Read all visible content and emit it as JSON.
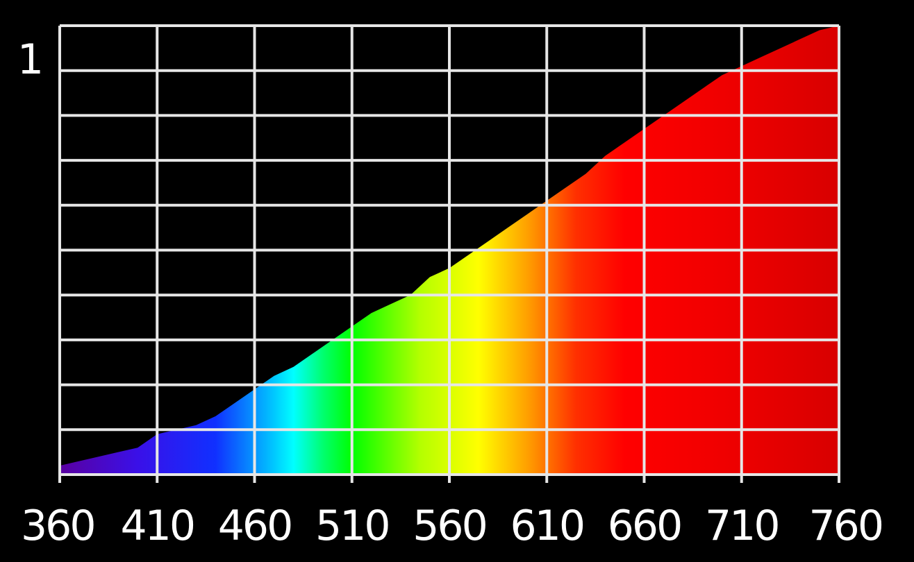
{
  "chart_data": {
    "type": "area",
    "title": "",
    "xlabel": "",
    "ylabel": "",
    "xlim": [
      360,
      760
    ],
    "ylim": [
      0,
      1
    ],
    "x_ticks": [
      360,
      410,
      460,
      510,
      560,
      610,
      660,
      710,
      760
    ],
    "x_tick_labels": [
      "360",
      "410",
      "460",
      "510",
      "560",
      "610",
      "660",
      "710",
      "760"
    ],
    "y_tick_labels": [
      "1"
    ],
    "grid": true,
    "fill": "visible-spectrum gradient",
    "series": [
      {
        "x": [
          360,
          370,
          380,
          390,
          400,
          410,
          420,
          430,
          440,
          450,
          460,
          470,
          480,
          490,
          500,
          510,
          520,
          530,
          540,
          550,
          560,
          570,
          580,
          590,
          600,
          610,
          620,
          630,
          640,
          650,
          660,
          670,
          680,
          690,
          700,
          710,
          720,
          730,
          740,
          750,
          760
        ],
        "values": [
          0.02,
          0.03,
          0.04,
          0.05,
          0.06,
          0.09,
          0.1,
          0.11,
          0.13,
          0.16,
          0.19,
          0.22,
          0.24,
          0.27,
          0.3,
          0.33,
          0.36,
          0.38,
          0.4,
          0.44,
          0.46,
          0.49,
          0.52,
          0.55,
          0.58,
          0.61,
          0.64,
          0.67,
          0.71,
          0.74,
          0.77,
          0.8,
          0.83,
          0.86,
          0.89,
          0.91,
          0.93,
          0.95,
          0.97,
          0.99,
          1.0
        ]
      }
    ]
  },
  "colors": {
    "background": "#000000",
    "grid": "#e6e6e6",
    "text": "#ffffff",
    "spectrum_stops": [
      {
        "nm": 360,
        "color": "#5a00a0"
      },
      {
        "nm": 400,
        "color": "#3a10e8"
      },
      {
        "nm": 440,
        "color": "#1030ff"
      },
      {
        "nm": 470,
        "color": "#00c8ff"
      },
      {
        "nm": 480,
        "color": "#00ffff"
      },
      {
        "nm": 495,
        "color": "#00ff70"
      },
      {
        "nm": 510,
        "color": "#00ff00"
      },
      {
        "nm": 545,
        "color": "#b4ff00"
      },
      {
        "nm": 575,
        "color": "#ffff00"
      },
      {
        "nm": 600,
        "color": "#ffa000"
      },
      {
        "nm": 625,
        "color": "#ff3000"
      },
      {
        "nm": 650,
        "color": "#ff0000"
      },
      {
        "nm": 700,
        "color": "#f00000"
      },
      {
        "nm": 760,
        "color": "#d80000"
      }
    ]
  }
}
